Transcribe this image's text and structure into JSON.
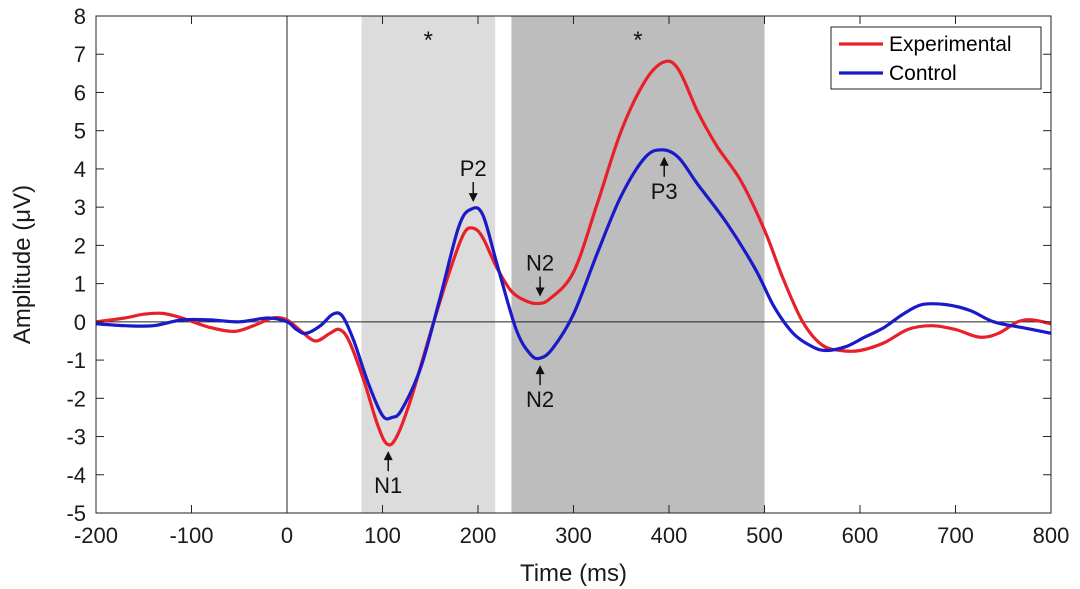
{
  "chart_data": {
    "type": "line",
    "xlabel": "Time (ms)",
    "ylabel": "Amplitude (μV)",
    "xlim": [
      -200,
      800
    ],
    "ylim": [
      -5,
      8
    ],
    "xticks": [
      -200,
      -100,
      0,
      100,
      200,
      300,
      400,
      500,
      600,
      700,
      800
    ],
    "yticks": [
      -5,
      -4,
      -3,
      -2,
      -1,
      0,
      1,
      2,
      3,
      4,
      5,
      6,
      7,
      8
    ],
    "legend_position": "top-right",
    "shaded_regions": [
      {
        "x0": 78,
        "x1": 218,
        "color": "#dcdcdc",
        "label": "*"
      },
      {
        "x0": 235,
        "x1": 500,
        "color": "#bdbdbd",
        "label": "*"
      }
    ],
    "series": [
      {
        "name": "Experimental",
        "color": "#e8202a",
        "points": [
          [
            -200,
            0.0
          ],
          [
            -170,
            0.1
          ],
          [
            -150,
            0.2
          ],
          [
            -130,
            0.22
          ],
          [
            -110,
            0.1
          ],
          [
            -80,
            -0.15
          ],
          [
            -55,
            -0.25
          ],
          [
            -35,
            -0.1
          ],
          [
            -15,
            0.1
          ],
          [
            0,
            0.05
          ],
          [
            15,
            -0.25
          ],
          [
            30,
            -0.5
          ],
          [
            45,
            -0.3
          ],
          [
            55,
            -0.2
          ],
          [
            65,
            -0.5
          ],
          [
            80,
            -1.5
          ],
          [
            95,
            -2.7
          ],
          [
            105,
            -3.2
          ],
          [
            115,
            -3.0
          ],
          [
            130,
            -2.0
          ],
          [
            150,
            -0.3
          ],
          [
            170,
            1.3
          ],
          [
            185,
            2.3
          ],
          [
            195,
            2.45
          ],
          [
            205,
            2.2
          ],
          [
            220,
            1.4
          ],
          [
            235,
            0.8
          ],
          [
            250,
            0.55
          ],
          [
            262,
            0.48
          ],
          [
            275,
            0.6
          ],
          [
            300,
            1.3
          ],
          [
            325,
            3.1
          ],
          [
            350,
            5.0
          ],
          [
            375,
            6.3
          ],
          [
            395,
            6.8
          ],
          [
            410,
            6.6
          ],
          [
            430,
            5.5
          ],
          [
            450,
            4.6
          ],
          [
            475,
            3.7
          ],
          [
            500,
            2.4
          ],
          [
            520,
            1.1
          ],
          [
            540,
            0.0
          ],
          [
            560,
            -0.6
          ],
          [
            580,
            -0.75
          ],
          [
            600,
            -0.75
          ],
          [
            625,
            -0.55
          ],
          [
            650,
            -0.2
          ],
          [
            675,
            -0.1
          ],
          [
            700,
            -0.2
          ],
          [
            725,
            -0.4
          ],
          [
            745,
            -0.3
          ],
          [
            765,
            0.0
          ],
          [
            780,
            0.05
          ],
          [
            800,
            -0.05
          ]
        ]
      },
      {
        "name": "Control",
        "color": "#1a1ac8",
        "points": [
          [
            -200,
            -0.05
          ],
          [
            -170,
            -0.1
          ],
          [
            -140,
            -0.1
          ],
          [
            -110,
            0.05
          ],
          [
            -80,
            0.05
          ],
          [
            -50,
            0.0
          ],
          [
            -20,
            0.1
          ],
          [
            0,
            0.0
          ],
          [
            10,
            -0.2
          ],
          [
            20,
            -0.3
          ],
          [
            35,
            -0.1
          ],
          [
            48,
            0.2
          ],
          [
            58,
            0.15
          ],
          [
            70,
            -0.5
          ],
          [
            85,
            -1.6
          ],
          [
            100,
            -2.45
          ],
          [
            110,
            -2.5
          ],
          [
            120,
            -2.3
          ],
          [
            140,
            -1.2
          ],
          [
            160,
            0.6
          ],
          [
            180,
            2.5
          ],
          [
            193,
            2.95
          ],
          [
            205,
            2.8
          ],
          [
            220,
            1.5
          ],
          [
            240,
            -0.2
          ],
          [
            255,
            -0.85
          ],
          [
            265,
            -0.95
          ],
          [
            278,
            -0.7
          ],
          [
            300,
            0.2
          ],
          [
            325,
            1.8
          ],
          [
            350,
            3.3
          ],
          [
            375,
            4.3
          ],
          [
            393,
            4.5
          ],
          [
            410,
            4.3
          ],
          [
            430,
            3.6
          ],
          [
            460,
            2.6
          ],
          [
            490,
            1.4
          ],
          [
            510,
            0.4
          ],
          [
            530,
            -0.3
          ],
          [
            550,
            -0.65
          ],
          [
            565,
            -0.75
          ],
          [
            585,
            -0.65
          ],
          [
            605,
            -0.4
          ],
          [
            625,
            -0.15
          ],
          [
            645,
            0.2
          ],
          [
            665,
            0.45
          ],
          [
            690,
            0.45
          ],
          [
            715,
            0.3
          ],
          [
            740,
            0.0
          ],
          [
            770,
            -0.15
          ],
          [
            800,
            -0.3
          ]
        ]
      }
    ],
    "annotations": [
      {
        "text": "N1",
        "x": 106,
        "y": -3.2,
        "side": "below"
      },
      {
        "text": "P2",
        "x": 195,
        "y": 2.95,
        "side": "above"
      },
      {
        "text": "N2",
        "x": 265,
        "y": 0.48,
        "side": "above"
      },
      {
        "text": "N2",
        "x": 265,
        "y": -0.95,
        "side": "below"
      },
      {
        "text": "P3",
        "x": 395,
        "y": 4.5,
        "side": "below"
      }
    ]
  }
}
